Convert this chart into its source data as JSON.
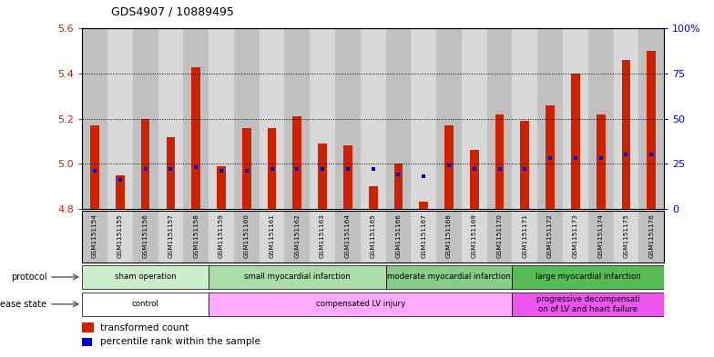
{
  "title": "GDS4907 / 10889495",
  "samples": [
    "GSM1151154",
    "GSM1151155",
    "GSM1151156",
    "GSM1151157",
    "GSM1151158",
    "GSM1151159",
    "GSM1151160",
    "GSM1151161",
    "GSM1151162",
    "GSM1151163",
    "GSM1151164",
    "GSM1151165",
    "GSM1151166",
    "GSM1151167",
    "GSM1151168",
    "GSM1151169",
    "GSM1151170",
    "GSM1151171",
    "GSM1151172",
    "GSM1151173",
    "GSM1151174",
    "GSM1151175",
    "GSM1151176"
  ],
  "transformed_count": [
    5.17,
    4.95,
    5.2,
    5.12,
    5.43,
    4.99,
    5.16,
    5.16,
    5.21,
    5.09,
    5.08,
    4.9,
    5.0,
    4.83,
    5.17,
    5.06,
    5.22,
    5.19,
    5.26,
    5.4,
    5.22,
    5.46,
    5.5
  ],
  "percentile_rank": [
    21,
    16,
    22,
    22,
    23,
    21,
    21,
    22,
    22,
    22,
    22,
    22,
    19,
    18,
    24,
    22,
    22,
    22,
    28,
    28,
    28,
    30,
    30
  ],
  "ylim_left": [
    4.8,
    5.6
  ],
  "ylim_right": [
    0,
    100
  ],
  "yticks_left": [
    4.8,
    5.0,
    5.2,
    5.4,
    5.6
  ],
  "yticks_right": [
    0,
    25,
    50,
    75,
    100
  ],
  "ytick_labels_right": [
    "0",
    "25",
    "50",
    "75",
    "100%"
  ],
  "bar_color": "#cc2200",
  "dot_color": "#0000cc",
  "baseline": 4.8,
  "dotted_lines": [
    5.0,
    5.2,
    5.4
  ],
  "protocol_groups": [
    {
      "label": "sham operation",
      "start": 0,
      "end": 5,
      "color": "#cceecc"
    },
    {
      "label": "small myocardial infarction",
      "start": 5,
      "end": 12,
      "color": "#aaddaa"
    },
    {
      "label": "moderate myocardial infarction",
      "start": 12,
      "end": 17,
      "color": "#88cc88"
    },
    {
      "label": "large myocardial infarction",
      "start": 17,
      "end": 23,
      "color": "#55bb55"
    }
  ],
  "disease_groups": [
    {
      "label": "control",
      "start": 0,
      "end": 5,
      "color": "#ffffff"
    },
    {
      "label": "compensated LV injury",
      "start": 5,
      "end": 17,
      "color": "#ffaaff"
    },
    {
      "label": "progressive decompensati\non of LV and heart failure",
      "start": 17,
      "end": 23,
      "color": "#ee55ee"
    }
  ],
  "protocol_label": "protocol",
  "disease_label": "disease state",
  "legend_bar_label": "transformed count",
  "legend_dot_label": "percentile rank within the sample",
  "bar_width": 0.35,
  "col_colors": [
    "#c0c0c0",
    "#d8d8d8"
  ]
}
